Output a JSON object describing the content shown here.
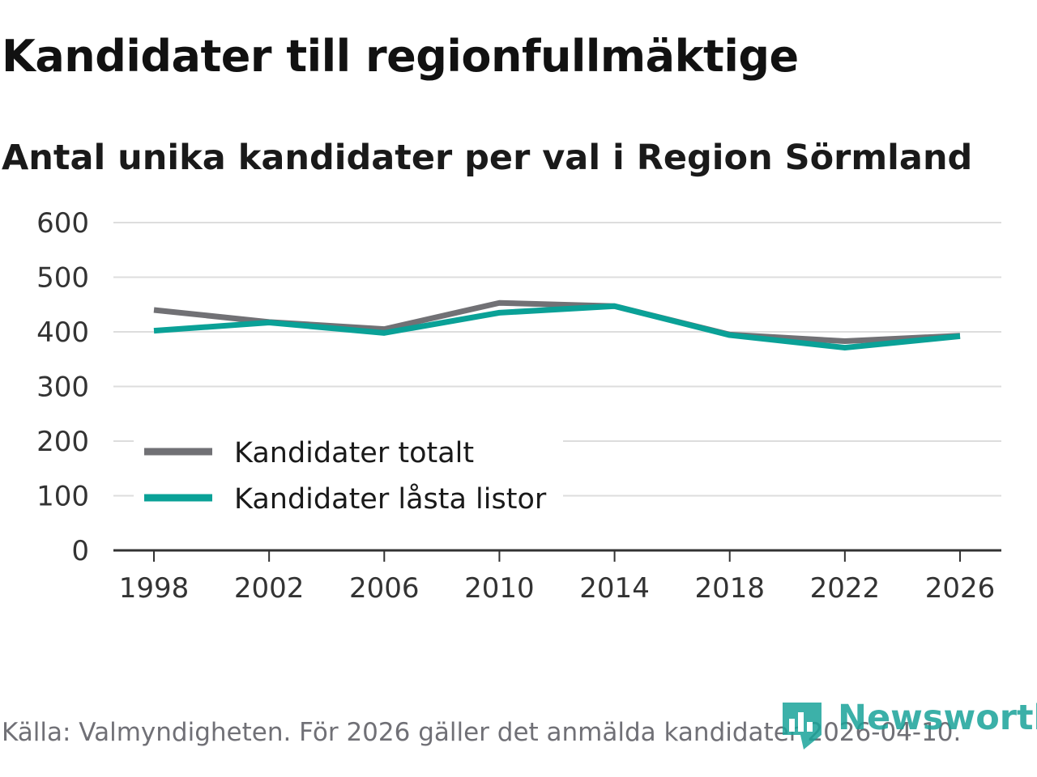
{
  "header": {
    "title": "Kandidater till regionfullmäktige",
    "subtitle": "Antal unika kandidater per val i Region Sörmland"
  },
  "footer": {
    "source": "Källa: Valmyndigheten. För 2026 gäller det anmälda kandidater 2026-04-10.",
    "logo_text": "Newsworthy"
  },
  "colors": {
    "series_total": "#717175",
    "series_locked": "#0aa197",
    "grid": "#dddddd",
    "axis": "#333333",
    "brand": "#1aa39a"
  },
  "chart_data": {
    "type": "line",
    "title": "Kandidater till regionfullmäktige",
    "subtitle": "Antal unika kandidater per val i Region Sörmland",
    "xlabel": "",
    "ylabel": "",
    "x": [
      "1998",
      "2002",
      "2006",
      "2010",
      "2014",
      "2018",
      "2022",
      "2026"
    ],
    "yticks": [
      "0",
      "100",
      "200",
      "300",
      "400",
      "500",
      "600"
    ],
    "ylim": [
      0,
      600
    ],
    "grid": true,
    "legend_position": "bottom-left",
    "series": [
      {
        "name": "Kandidater totalt",
        "color_key": "series_total",
        "values": [
          440,
          418,
          405,
          453,
          447,
          395,
          383,
          393
        ]
      },
      {
        "name": "Kandidater låsta listor",
        "color_key": "series_locked",
        "values": [
          402,
          417,
          398,
          435,
          447,
          394,
          371,
          392
        ]
      }
    ]
  }
}
